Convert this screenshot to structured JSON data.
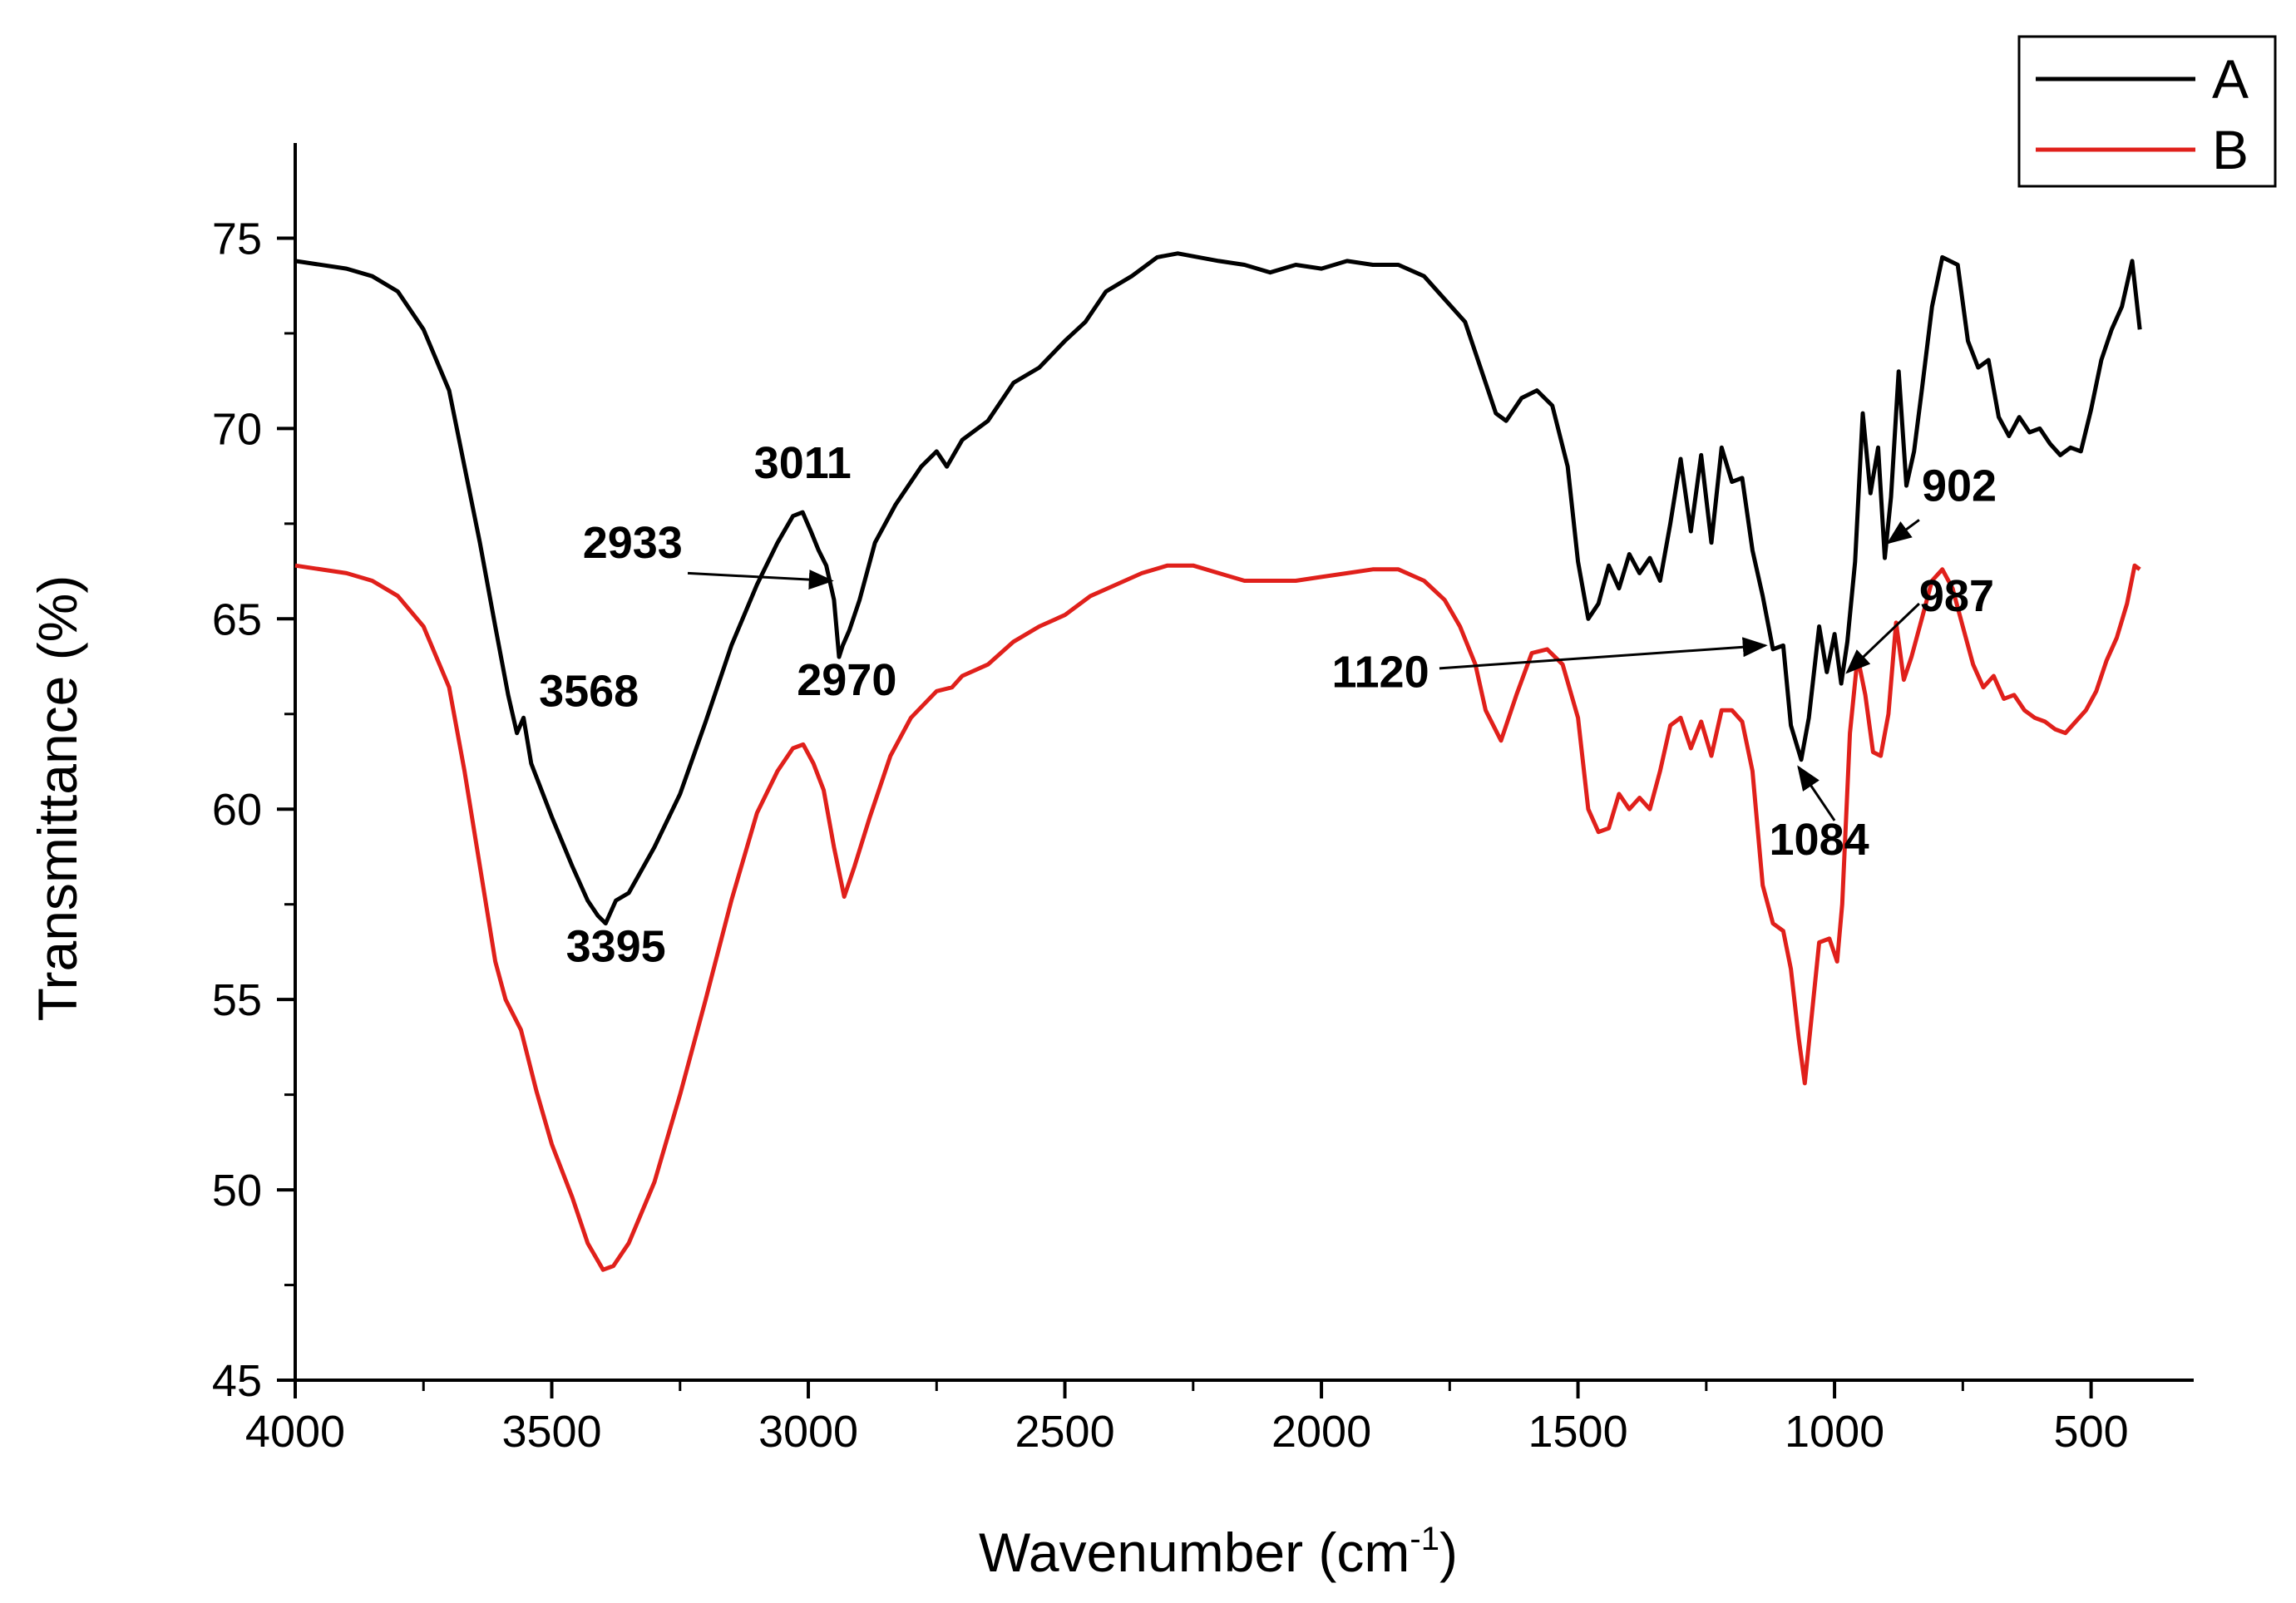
{
  "chart_data": {
    "type": "line",
    "title": "",
    "xlabel": "Wavenumber (cm",
    "xlabel_sup": "-1",
    "xlabel_close": ")",
    "ylabel": "Transmittance (%)",
    "xlim": [
      4000,
      300
    ],
    "ylim": [
      45,
      77.5
    ],
    "x_reversed": true,
    "x_ticks": [
      {
        "value": 4000,
        "label": "4000"
      },
      {
        "value": 3500,
        "label": "3500"
      },
      {
        "value": 3000,
        "label": "3000"
      },
      {
        "value": 2500,
        "label": "2500"
      },
      {
        "value": 2000,
        "label": "2000"
      },
      {
        "value": 1500,
        "label": "1500"
      },
      {
        "value": 1000,
        "label": "1000"
      },
      {
        "value": 500,
        "label": "500"
      }
    ],
    "y_ticks": [
      {
        "value": 45,
        "label": "45"
      },
      {
        "value": 50,
        "label": "50"
      },
      {
        "value": 55,
        "label": "55"
      },
      {
        "value": 60,
        "label": "60"
      },
      {
        "value": 65,
        "label": "65"
      },
      {
        "value": 70,
        "label": "70"
      },
      {
        "value": 75,
        "label": "75"
      }
    ],
    "grid": false,
    "legend": {
      "position": "top-right"
    },
    "series": [
      {
        "name": "A",
        "color": "#000000",
        "points": [
          [
            4000,
            74.4
          ],
          [
            3900,
            74.2
          ],
          [
            3850,
            74.0
          ],
          [
            3800,
            73.6
          ],
          [
            3750,
            72.6
          ],
          [
            3700,
            71.0
          ],
          [
            3670,
            69.0
          ],
          [
            3640,
            67.0
          ],
          [
            3610,
            64.8
          ],
          [
            3585,
            63.0
          ],
          [
            3568,
            62.0
          ],
          [
            3555,
            62.4
          ],
          [
            3540,
            61.2
          ],
          [
            3500,
            59.8
          ],
          [
            3460,
            58.5
          ],
          [
            3430,
            57.6
          ],
          [
            3410,
            57.2
          ],
          [
            3395,
            57.0
          ],
          [
            3375,
            57.6
          ],
          [
            3350,
            57.8
          ],
          [
            3300,
            59.0
          ],
          [
            3250,
            60.4
          ],
          [
            3200,
            62.3
          ],
          [
            3150,
            64.3
          ],
          [
            3100,
            65.9
          ],
          [
            3060,
            67.0
          ],
          [
            3030,
            67.7
          ],
          [
            3011,
            67.8
          ],
          [
            2995,
            67.3
          ],
          [
            2980,
            66.8
          ],
          [
            2965,
            66.4
          ],
          [
            2950,
            65.5
          ],
          [
            2940,
            64.0
          ],
          [
            2933,
            64.3
          ],
          [
            2920,
            64.7
          ],
          [
            2900,
            65.5
          ],
          [
            2870,
            67.0
          ],
          [
            2830,
            68.0
          ],
          [
            2780,
            69.0
          ],
          [
            2750,
            69.4
          ],
          [
            2730,
            69.0
          ],
          [
            2700,
            69.7
          ],
          [
            2650,
            70.2
          ],
          [
            2600,
            71.2
          ],
          [
            2550,
            71.6
          ],
          [
            2500,
            72.3
          ],
          [
            2460,
            72.8
          ],
          [
            2420,
            73.6
          ],
          [
            2370,
            74.0
          ],
          [
            2320,
            74.5
          ],
          [
            2280,
            74.6
          ],
          [
            2200,
            74.4
          ],
          [
            2150,
            74.3
          ],
          [
            2100,
            74.1
          ],
          [
            2050,
            74.3
          ],
          [
            2000,
            74.2
          ],
          [
            1950,
            74.4
          ],
          [
            1900,
            74.3
          ],
          [
            1850,
            74.3
          ],
          [
            1800,
            74.0
          ],
          [
            1760,
            73.4
          ],
          [
            1720,
            72.8
          ],
          [
            1690,
            71.6
          ],
          [
            1660,
            70.4
          ],
          [
            1640,
            70.2
          ],
          [
            1610,
            70.8
          ],
          [
            1580,
            71.0
          ],
          [
            1550,
            70.6
          ],
          [
            1520,
            69.0
          ],
          [
            1500,
            66.5
          ],
          [
            1480,
            65.0
          ],
          [
            1460,
            65.4
          ],
          [
            1440,
            66.4
          ],
          [
            1420,
            65.8
          ],
          [
            1400,
            66.7
          ],
          [
            1380,
            66.2
          ],
          [
            1360,
            66.6
          ],
          [
            1340,
            66.0
          ],
          [
            1320,
            67.5
          ],
          [
            1300,
            69.2
          ],
          [
            1280,
            67.3
          ],
          [
            1260,
            69.3
          ],
          [
            1240,
            67.0
          ],
          [
            1220,
            69.5
          ],
          [
            1200,
            68.6
          ],
          [
            1180,
            68.7
          ],
          [
            1160,
            66.8
          ],
          [
            1140,
            65.6
          ],
          [
            1120,
            64.2
          ],
          [
            1100,
            64.3
          ],
          [
            1085,
            62.2
          ],
          [
            1065,
            61.3
          ],
          [
            1050,
            62.4
          ],
          [
            1030,
            64.8
          ],
          [
            1015,
            63.6
          ],
          [
            1000,
            64.6
          ],
          [
            987,
            63.3
          ],
          [
            975,
            64.4
          ],
          [
            960,
            66.5
          ],
          [
            945,
            70.4
          ],
          [
            930,
            68.3
          ],
          [
            915,
            69.5
          ],
          [
            902,
            66.6
          ],
          [
            890,
            68.2
          ],
          [
            875,
            71.5
          ],
          [
            860,
            68.5
          ],
          [
            845,
            69.4
          ],
          [
            830,
            71.0
          ],
          [
            810,
            73.2
          ],
          [
            790,
            74.5
          ],
          [
            760,
            74.3
          ],
          [
            740,
            72.3
          ],
          [
            720,
            71.6
          ],
          [
            700,
            71.8
          ],
          [
            680,
            70.3
          ],
          [
            660,
            69.8
          ],
          [
            640,
            70.3
          ],
          [
            620,
            69.9
          ],
          [
            600,
            70.0
          ],
          [
            580,
            69.6
          ],
          [
            560,
            69.3
          ],
          [
            540,
            69.5
          ],
          [
            520,
            69.4
          ],
          [
            500,
            70.5
          ],
          [
            480,
            71.8
          ],
          [
            460,
            72.6
          ],
          [
            440,
            73.2
          ],
          [
            420,
            74.4
          ],
          [
            405,
            72.6
          ]
        ]
      },
      {
        "name": "B",
        "color": "#e0201b",
        "points": [
          [
            4000,
            66.4
          ],
          [
            3900,
            66.2
          ],
          [
            3850,
            66.0
          ],
          [
            3800,
            65.6
          ],
          [
            3750,
            64.8
          ],
          [
            3700,
            63.2
          ],
          [
            3670,
            61.0
          ],
          [
            3640,
            58.5
          ],
          [
            3610,
            56.0
          ],
          [
            3590,
            55.0
          ],
          [
            3560,
            54.2
          ],
          [
            3530,
            52.6
          ],
          [
            3500,
            51.2
          ],
          [
            3460,
            49.8
          ],
          [
            3430,
            48.6
          ],
          [
            3400,
            47.9
          ],
          [
            3380,
            48.0
          ],
          [
            3350,
            48.6
          ],
          [
            3300,
            50.2
          ],
          [
            3250,
            52.5
          ],
          [
            3200,
            55.0
          ],
          [
            3150,
            57.6
          ],
          [
            3100,
            59.9
          ],
          [
            3060,
            61.0
          ],
          [
            3030,
            61.6
          ],
          [
            3010,
            61.7
          ],
          [
            2990,
            61.2
          ],
          [
            2970,
            60.5
          ],
          [
            2950,
            59.0
          ],
          [
            2930,
            57.7
          ],
          [
            2910,
            58.5
          ],
          [
            2880,
            59.8
          ],
          [
            2840,
            61.4
          ],
          [
            2800,
            62.4
          ],
          [
            2750,
            63.1
          ],
          [
            2720,
            63.2
          ],
          [
            2700,
            63.5
          ],
          [
            2650,
            63.8
          ],
          [
            2600,
            64.4
          ],
          [
            2550,
            64.8
          ],
          [
            2500,
            65.1
          ],
          [
            2450,
            65.6
          ],
          [
            2400,
            65.9
          ],
          [
            2350,
            66.2
          ],
          [
            2300,
            66.4
          ],
          [
            2250,
            66.4
          ],
          [
            2200,
            66.2
          ],
          [
            2150,
            66.0
          ],
          [
            2100,
            66.0
          ],
          [
            2050,
            66.0
          ],
          [
            2000,
            66.1
          ],
          [
            1950,
            66.2
          ],
          [
            1900,
            66.3
          ],
          [
            1850,
            66.3
          ],
          [
            1800,
            66.0
          ],
          [
            1760,
            65.5
          ],
          [
            1730,
            64.8
          ],
          [
            1700,
            63.8
          ],
          [
            1680,
            62.6
          ],
          [
            1650,
            61.8
          ],
          [
            1620,
            63.0
          ],
          [
            1590,
            64.1
          ],
          [
            1560,
            64.2
          ],
          [
            1530,
            63.8
          ],
          [
            1500,
            62.4
          ],
          [
            1480,
            60.0
          ],
          [
            1460,
            59.4
          ],
          [
            1440,
            59.5
          ],
          [
            1420,
            60.4
          ],
          [
            1400,
            60.0
          ],
          [
            1380,
            60.3
          ],
          [
            1360,
            60.0
          ],
          [
            1340,
            61.0
          ],
          [
            1320,
            62.2
          ],
          [
            1300,
            62.4
          ],
          [
            1280,
            61.6
          ],
          [
            1260,
            62.3
          ],
          [
            1240,
            61.4
          ],
          [
            1220,
            62.6
          ],
          [
            1200,
            62.6
          ],
          [
            1180,
            62.3
          ],
          [
            1160,
            61.0
          ],
          [
            1140,
            58.0
          ],
          [
            1120,
            57.0
          ],
          [
            1100,
            56.8
          ],
          [
            1085,
            55.8
          ],
          [
            1070,
            54.0
          ],
          [
            1058,
            52.8
          ],
          [
            1045,
            54.5
          ],
          [
            1030,
            56.5
          ],
          [
            1010,
            56.6
          ],
          [
            995,
            56.0
          ],
          [
            985,
            57.5
          ],
          [
            970,
            62.0
          ],
          [
            955,
            64.0
          ],
          [
            940,
            63.0
          ],
          [
            925,
            61.5
          ],
          [
            910,
            61.4
          ],
          [
            895,
            62.5
          ],
          [
            880,
            64.9
          ],
          [
            865,
            63.4
          ],
          [
            850,
            64.0
          ],
          [
            830,
            65.0
          ],
          [
            810,
            66.0
          ],
          [
            790,
            66.3
          ],
          [
            770,
            65.8
          ],
          [
            750,
            64.8
          ],
          [
            730,
            63.8
          ],
          [
            710,
            63.2
          ],
          [
            690,
            63.5
          ],
          [
            670,
            62.9
          ],
          [
            650,
            63.0
          ],
          [
            630,
            62.6
          ],
          [
            610,
            62.4
          ],
          [
            590,
            62.3
          ],
          [
            570,
            62.1
          ],
          [
            550,
            62.0
          ],
          [
            530,
            62.3
          ],
          [
            510,
            62.6
          ],
          [
            490,
            63.1
          ],
          [
            470,
            63.9
          ],
          [
            450,
            64.5
          ],
          [
            430,
            65.4
          ],
          [
            415,
            66.4
          ],
          [
            405,
            66.3
          ]
        ]
      }
    ],
    "annotations": [
      {
        "text": "3011",
        "label_x": 3011,
        "label_y": 68.7,
        "anchor": "middle"
      },
      {
        "text": "2933",
        "label_x": 3245,
        "label_y": 66.6,
        "anchor": "end",
        "arrow_from": [
          3235,
          66.2
        ],
        "arrow_to": [
          2955,
          66.0
        ]
      },
      {
        "text": "2970",
        "label_x": 2925,
        "label_y": 63.0,
        "anchor": "middle"
      },
      {
        "text": "3568",
        "label_x": 3525,
        "label_y": 62.7,
        "anchor": "start"
      },
      {
        "text": "3395",
        "label_x": 3375,
        "label_y": 56.0,
        "anchor": "middle"
      },
      {
        "text": "1120",
        "label_x": 1790,
        "label_y": 63.2,
        "anchor": "end",
        "arrow_from": [
          1770,
          63.7
        ],
        "arrow_to": [
          1135,
          64.3
        ]
      },
      {
        "text": "987",
        "label_x": 835,
        "label_y": 65.2,
        "anchor": "start",
        "arrow_from": [
          835,
          65.4
        ],
        "arrow_to": [
          975,
          63.6
        ]
      },
      {
        "text": "1084",
        "label_x": 1030,
        "label_y": 58.8,
        "anchor": "middle",
        "arrow_from": [
          1000,
          59.7
        ],
        "arrow_to": [
          1070,
          61.1
        ]
      },
      {
        "text": "902",
        "label_x": 830,
        "label_y": 68.1,
        "anchor": "start",
        "arrow_from": [
          835,
          67.6
        ],
        "arrow_to": [
          895,
          67.0
        ]
      }
    ]
  }
}
